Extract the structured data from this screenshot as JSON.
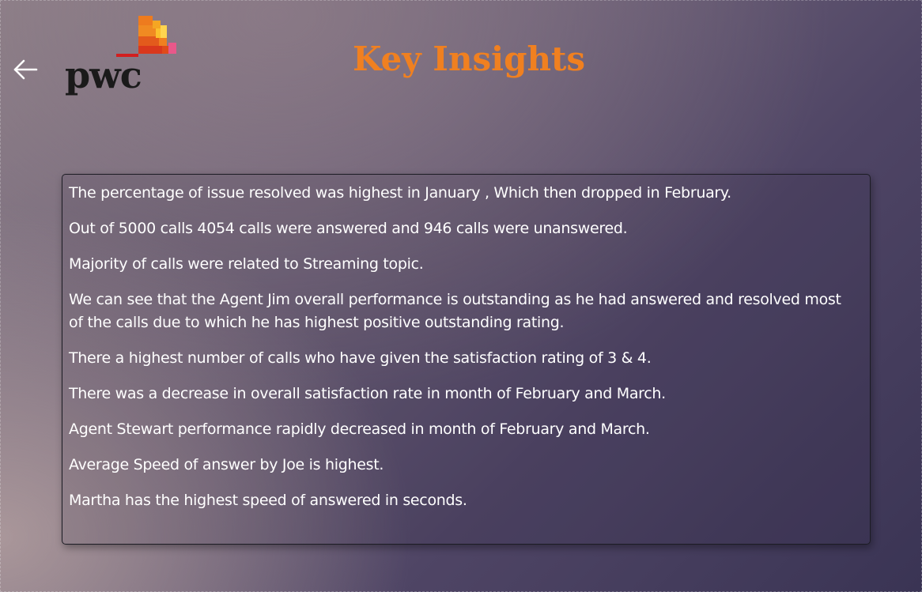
{
  "header": {
    "title": "Key Insights",
    "back_icon": "arrow-left-icon",
    "logo": {
      "text": "pwc",
      "colors": {
        "red": "#d21f1f",
        "dark_orange": "#e04b1b",
        "orange": "#ee7b1e",
        "amber": "#f5a623",
        "yellow": "#fbc02d",
        "pink": "#e8588a"
      }
    }
  },
  "insights": [
    "The percentage of issue resolved was highest in January , Which then dropped in February.",
    "Out of 5000 calls 4054 calls were answered and 946 calls were unanswered.",
    "Majority of calls were related to Streaming topic.",
    "We can see that the Agent Jim overall performance is outstanding as he had answered and resolved most\nof the calls due to which he has highest positive outstanding rating.",
    "There a highest number of calls who have given the satisfaction rating of 3 & 4.",
    "There was a decrease in overall satisfaction rate in month of February and March.",
    "Agent Stewart performance rapidly decreased in month of February and March.",
    "Average Speed of answer by Joe is highest.",
    "Martha has the highest speed of answered in seconds."
  ],
  "theme": {
    "title_color": "#f08020",
    "text_color": "#ffffff",
    "card_border": "#1c1c24"
  }
}
